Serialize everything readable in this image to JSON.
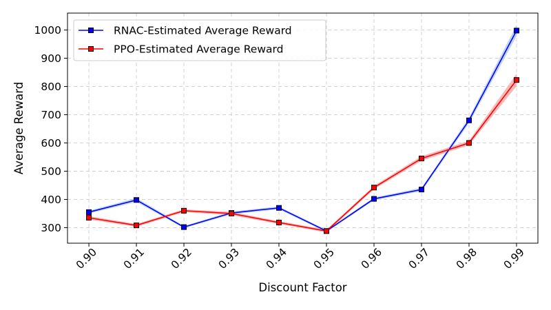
{
  "chart_data": {
    "type": "line",
    "xlabel": "Discount Factor",
    "ylabel": "Average Reward",
    "x": [
      0.9,
      0.91,
      0.92,
      0.93,
      0.94,
      0.95,
      0.96,
      0.97,
      0.98,
      0.99
    ],
    "x_tick_labels": [
      "0.90",
      "0.91",
      "0.92",
      "0.93",
      "0.94",
      "0.95",
      "0.96",
      "0.97",
      "0.98",
      "0.99"
    ],
    "y_ticks": [
      300,
      400,
      500,
      600,
      700,
      800,
      900,
      1000
    ],
    "ylim": [
      245,
      1060
    ],
    "xlim": [
      0.8955,
      0.9945
    ],
    "grid": true,
    "legend_position": "upper-left",
    "series": [
      {
        "name": "RNAC-Estimated Average Reward",
        "color": "#0000ff",
        "band_color": "#a9c7ee",
        "marker": "square",
        "values": [
          355,
          398,
          302,
          352,
          370,
          288,
          402,
          435,
          680,
          998
        ],
        "band_halfwidth": [
          5,
          7,
          4,
          5,
          5,
          4,
          5,
          6,
          10,
          20
        ]
      },
      {
        "name": "PPO-Estimated Average Reward",
        "color": "#ff0000",
        "band_color": "#f4a3a3",
        "marker": "square",
        "values": [
          335,
          308,
          360,
          350,
          318,
          288,
          442,
          545,
          600,
          823
        ],
        "band_halfwidth": [
          6,
          5,
          5,
          6,
          5,
          5,
          6,
          8,
          8,
          22
        ]
      }
    ]
  }
}
